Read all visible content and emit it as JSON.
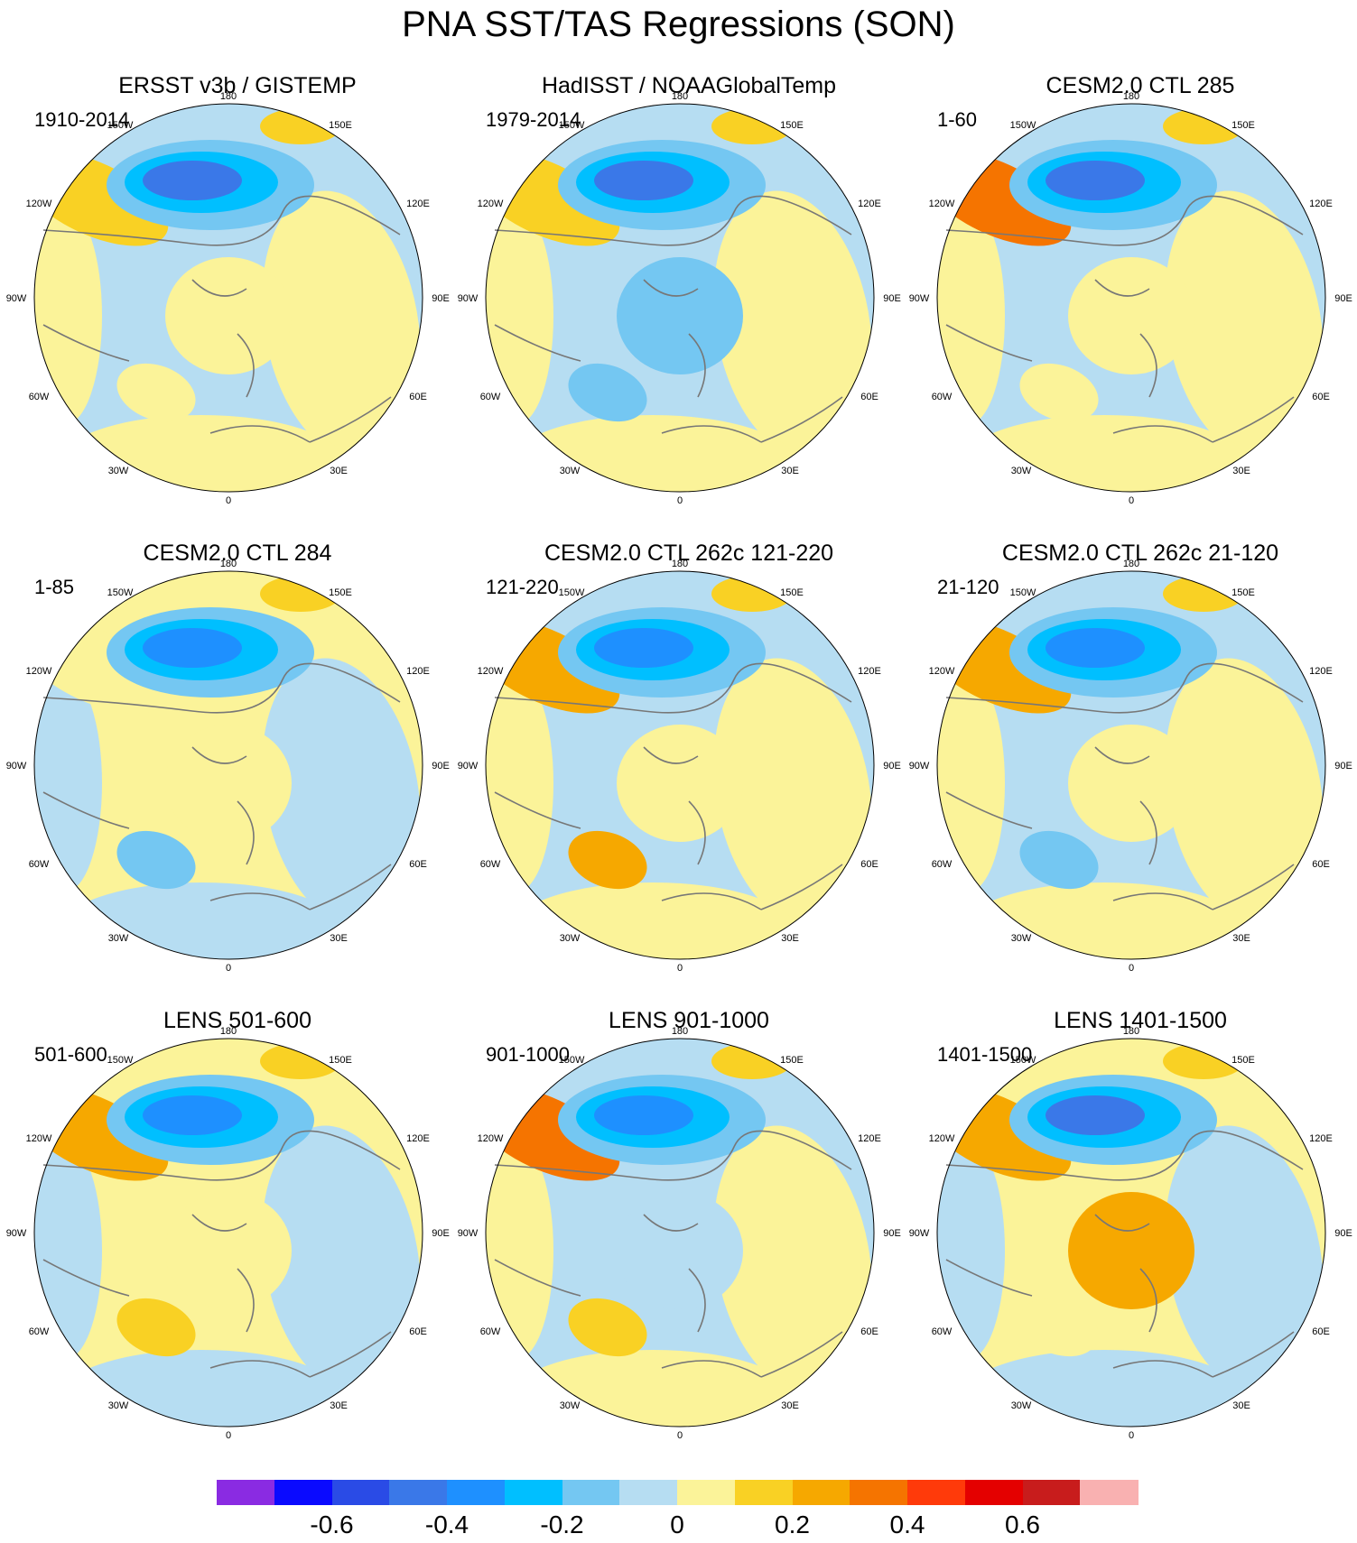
{
  "title": "PNA SST/TAS Regressions (SON)",
  "lon_labels": {
    "top": "180",
    "top_left": "150W",
    "top_right": "150E",
    "upper_left": "120W",
    "upper_right": "120E",
    "left": "90W",
    "right": "90E",
    "lower_left": "60W",
    "lower_right": "60E",
    "bottom_left": "30W",
    "bottom_right": "30E",
    "bottom": "0"
  },
  "panels": [
    {
      "title": "ERSST v3b / GISTEMP",
      "period": "1910-2014"
    },
    {
      "title": "HadISST / NOAAGlobalTemp",
      "period": "1979-2014"
    },
    {
      "title": "CESM2.0 CTL 285",
      "period": "1-60"
    },
    {
      "title": "CESM2.0 CTL 284",
      "period": "1-85"
    },
    {
      "title": "CESM2.0 CTL 262c 121-220",
      "period": "121-220"
    },
    {
      "title": "CESM2.0 CTL 262c 21-120",
      "period": "21-120"
    },
    {
      "title": "LENS 501-600",
      "period": "501-600"
    },
    {
      "title": "LENS 901-1000",
      "period": "901-1000"
    },
    {
      "title": "LENS 1401-1500",
      "period": "1401-1500"
    }
  ],
  "colorbar": {
    "colors": [
      "#8a2be2",
      "#0a0aff",
      "#2a4be6",
      "#3a78e8",
      "#1e90ff",
      "#00bfff",
      "#74c7f2",
      "#b6ddf2",
      "#fbf399",
      "#f9d124",
      "#f6a800",
      "#f57400",
      "#ff3a0a",
      "#e40000",
      "#c81c1c",
      "#f9b1b1"
    ],
    "tick_labels": [
      "-0.6",
      "-0.4",
      "-0.2",
      "0",
      "0.2",
      "0.4",
      "0.6"
    ]
  },
  "map_colors": {
    "neg_weak": "#b6ddf2",
    "neg_mid": "#74c7f2",
    "neg_strong": "#00bfff",
    "neg_stronger": "#1e90ff",
    "neg_strongest": "#3a78e8",
    "pos_weak": "#fbf399",
    "pos_mid": "#f9d124",
    "pos_strong": "#f6a800",
    "pos_stronger": "#f57400",
    "pos_strongest": "#ff3a0a",
    "coast": "#777777"
  },
  "panel_patterns": [
    {
      "base": "neg_weak",
      "center": "pos_weak",
      "pac_cold": "neg_strongest",
      "pac_warm": "pos_mid",
      "atl": "pos_weak"
    },
    {
      "base": "neg_weak",
      "center": "neg_mid",
      "pac_cold": "neg_strongest",
      "pac_warm": "pos_mid",
      "atl": "neg_mid"
    },
    {
      "base": "neg_weak",
      "center": "pos_weak",
      "pac_cold": "neg_strongest",
      "pac_warm": "pos_stronger",
      "atl": "pos_weak"
    },
    {
      "base": "pos_weak",
      "center": "pos_weak",
      "pac_cold": "neg_stronger",
      "pac_warm": "pos_weak",
      "atl": "neg_mid"
    },
    {
      "base": "neg_weak",
      "center": "pos_weak",
      "pac_cold": "neg_stronger",
      "pac_warm": "pos_strong",
      "atl": "pos_strong"
    },
    {
      "base": "neg_weak",
      "center": "pos_weak",
      "pac_cold": "neg_stronger",
      "pac_warm": "pos_strong",
      "atl": "neg_mid"
    },
    {
      "base": "pos_weak",
      "center": "pos_weak",
      "pac_cold": "neg_stronger",
      "pac_warm": "pos_strong",
      "atl": "pos_mid"
    },
    {
      "base": "neg_weak",
      "center": "neg_weak",
      "pac_cold": "neg_stronger",
      "pac_warm": "pos_stronger",
      "atl": "pos_mid"
    },
    {
      "base": "pos_weak",
      "center": "pos_strong",
      "pac_cold": "neg_strongest",
      "pac_warm": "pos_strong",
      "atl": "pos_weak"
    }
  ]
}
